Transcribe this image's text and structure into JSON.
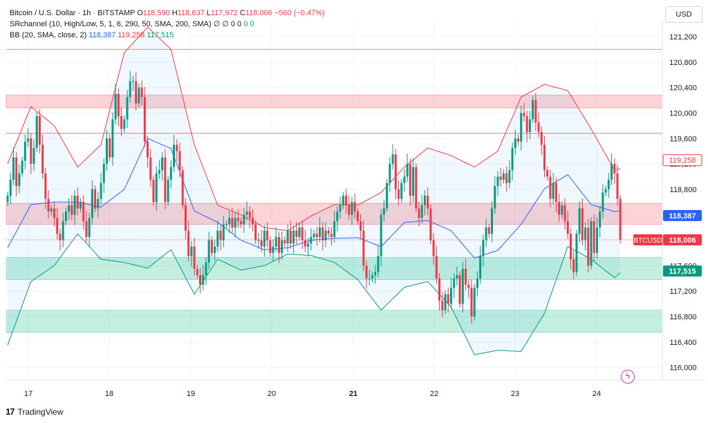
{
  "legend": {
    "symbol_title": "Bitcoin / U.S. Dollar · 1h · BITSTAMP",
    "open_label": "O",
    "open": "118,590",
    "high_label": "H",
    "high": "118,637",
    "low_label": "L",
    "low": "117,972",
    "close_label": "C",
    "close": "118,006",
    "change": "−560 (−0.47%)",
    "sr_title": "SRchannel (10, High/Low, 5, 1, 6, 290, 50, SMA, 200, SMA)",
    "sr_values": "∅ ∅ 0 0",
    "sr_green1": "0",
    "sr_green2": "0",
    "bb_title": "BB (20, SMA, close, 2)",
    "bb_basis": "118,387",
    "bb_upper": "119,258",
    "bb_lower": "117,515"
  },
  "currency_button": "USD",
  "footer": {
    "brand": "TradingView"
  },
  "colors": {
    "up": "#089981",
    "down": "#f23645",
    "basis": "#2962ff",
    "upper": "#f23645",
    "lower": "#089981"
  },
  "chart_data": {
    "type": "candlestick",
    "symbol": "BTCUSD",
    "interval": "1h",
    "ylim": [
      115800,
      121450
    ],
    "y_ticks": [
      121200,
      120800,
      120400,
      120000,
      119600,
      119200,
      118800,
      117600,
      117200,
      116800,
      116400,
      116000
    ],
    "x_ticks": [
      "17",
      "18",
      "19",
      "20",
      "21",
      "22",
      "23",
      "24"
    ],
    "x_tick_day_index": [
      0,
      1,
      2,
      3,
      4,
      5,
      6,
      7
    ],
    "price_labels": [
      {
        "text": "119,258",
        "value": 119258,
        "kind": "upper"
      },
      {
        "text": "118,387",
        "value": 118387,
        "kind": "basis"
      },
      {
        "text": "BTCUSD",
        "value": 118006,
        "kind": "symbol"
      },
      {
        "text": "118,006",
        "value": 118006,
        "kind": "last"
      },
      {
        "text": "117,515",
        "value": 117515,
        "kind": "lower"
      }
    ],
    "sr_zones": [
      {
        "low": 120080,
        "high": 120280,
        "type": "resistance"
      },
      {
        "low": 118250,
        "high": 118580,
        "type": "resistance"
      },
      {
        "low": 117380,
        "high": 117730,
        "type": "support"
      },
      {
        "low": 116550,
        "high": 116900,
        "type": "support"
      }
    ],
    "sr_lines": [
      121000,
      119680
    ],
    "close_series": [
      118700,
      118950,
      119300,
      118850,
      119050,
      119250,
      119550,
      119600,
      119200,
      119450,
      119950,
      119500,
      119050,
      118650,
      118450,
      118500,
      118350,
      118100,
      118000,
      118300,
      118450,
      118550,
      118400,
      118700,
      118500,
      118600,
      118300,
      118050,
      118350,
      118800,
      118500,
      118650,
      118900,
      119200,
      119600,
      119300,
      119900,
      120300,
      119950,
      119750,
      119900,
      120250,
      120500,
      120500,
      120150,
      120400,
      120250,
      119550,
      119300,
      118950,
      118600,
      119050,
      119100,
      119300,
      118600,
      118950,
      119150,
      119500,
      119400,
      119100,
      118550,
      118150,
      117750,
      117900,
      117550,
      117450,
      117300,
      117450,
      117650,
      118000,
      117800,
      117900,
      118150,
      118000,
      118250,
      118250,
      118350,
      118200,
      118350,
      118300,
      118250,
      118400,
      118450,
      118350,
      118250,
      118000,
      118000,
      117900,
      118150,
      118000,
      117800,
      117900,
      118050,
      117800,
      118000,
      117950,
      118150,
      117950,
      118150,
      118050,
      118200,
      118000,
      117900,
      117950,
      118050,
      118100,
      118050,
      118200,
      118000,
      118150,
      118100,
      118050,
      118300,
      118450,
      118550,
      118700,
      118550,
      118400,
      118600,
      118450,
      118300,
      118150,
      117600,
      117400,
      117400,
      117450,
      117500,
      117750,
      118400,
      118500,
      118900,
      119200,
      119350,
      118800,
      118650,
      118900,
      119000,
      119200,
      118700,
      119150,
      118500,
      118350,
      118550,
      118700,
      118500,
      118000,
      117750,
      117400,
      117050,
      116900,
      117150,
      117000,
      117250,
      117400,
      117450,
      117000,
      117550,
      117300,
      117250,
      116800,
      117250,
      117400,
      117750,
      118000,
      118200,
      118100,
      118500,
      118850,
      119000,
      118950,
      119050,
      118900,
      119100,
      119450,
      119600,
      119550,
      120000,
      119950,
      119700,
      119900,
      120200,
      119850,
      119700,
      119500,
      119100,
      119000,
      118650,
      118900,
      118600,
      118400,
      118550,
      118300,
      118100,
      117700,
      117500,
      118100,
      118500,
      118000,
      118200,
      117600,
      118300,
      117800,
      118200,
      118450,
      118750,
      118800,
      118950,
      119200,
      119050,
      118650,
      118006
    ],
    "basis": [
      [
        0,
        117880
      ],
      [
        8,
        118560
      ],
      [
        16,
        118600
      ],
      [
        24,
        118600
      ],
      [
        32,
        118520
      ],
      [
        40,
        118800
      ],
      [
        48,
        119600
      ],
      [
        56,
        119440
      ],
      [
        64,
        118460
      ],
      [
        72,
        118280
      ],
      [
        80,
        118000
      ],
      [
        88,
        117850
      ],
      [
        96,
        117880
      ],
      [
        104,
        118000
      ],
      [
        112,
        118030
      ],
      [
        120,
        118040
      ],
      [
        128,
        117900
      ],
      [
        136,
        118280
      ],
      [
        144,
        118310
      ],
      [
        152,
        118150
      ],
      [
        160,
        117720
      ],
      [
        168,
        117840
      ],
      [
        176,
        118250
      ],
      [
        184,
        118810
      ],
      [
        192,
        119030
      ],
      [
        200,
        118560
      ],
      [
        208,
        118450
      ],
      [
        216,
        118500
      ],
      [
        224,
        118387
      ]
    ],
    "upper": [
      [
        0,
        119200
      ],
      [
        8,
        120100
      ],
      [
        16,
        119800
      ],
      [
        24,
        119150
      ],
      [
        32,
        119500
      ],
      [
        40,
        120950
      ],
      [
        48,
        121350
      ],
      [
        56,
        121000
      ],
      [
        64,
        119500
      ],
      [
        72,
        118550
      ],
      [
        80,
        118400
      ],
      [
        88,
        118200
      ],
      [
        96,
        118150
      ],
      [
        104,
        118380
      ],
      [
        112,
        118560
      ],
      [
        120,
        118550
      ],
      [
        128,
        118750
      ],
      [
        136,
        119150
      ],
      [
        144,
        119450
      ],
      [
        152,
        119330
      ],
      [
        160,
        119150
      ],
      [
        168,
        119400
      ],
      [
        176,
        120250
      ],
      [
        184,
        120450
      ],
      [
        192,
        120350
      ],
      [
        200,
        119750
      ],
      [
        208,
        119100
      ],
      [
        216,
        119200
      ],
      [
        224,
        119258
      ]
    ],
    "lower": [
      [
        0,
        116350
      ],
      [
        8,
        117350
      ],
      [
        16,
        117600
      ],
      [
        24,
        118100
      ],
      [
        32,
        117700
      ],
      [
        40,
        117650
      ],
      [
        48,
        117560
      ],
      [
        56,
        117850
      ],
      [
        64,
        117150
      ],
      [
        72,
        117700
      ],
      [
        80,
        117530
      ],
      [
        88,
        117600
      ],
      [
        96,
        117780
      ],
      [
        104,
        117760
      ],
      [
        112,
        117650
      ],
      [
        120,
        117380
      ],
      [
        128,
        116900
      ],
      [
        136,
        117260
      ],
      [
        144,
        117350
      ],
      [
        152,
        116950
      ],
      [
        160,
        116200
      ],
      [
        168,
        116270
      ],
      [
        176,
        116250
      ],
      [
        184,
        116850
      ],
      [
        192,
        117900
      ],
      [
        200,
        117700
      ],
      [
        208,
        117410
      ],
      [
        216,
        117730
      ],
      [
        224,
        117515
      ]
    ]
  }
}
